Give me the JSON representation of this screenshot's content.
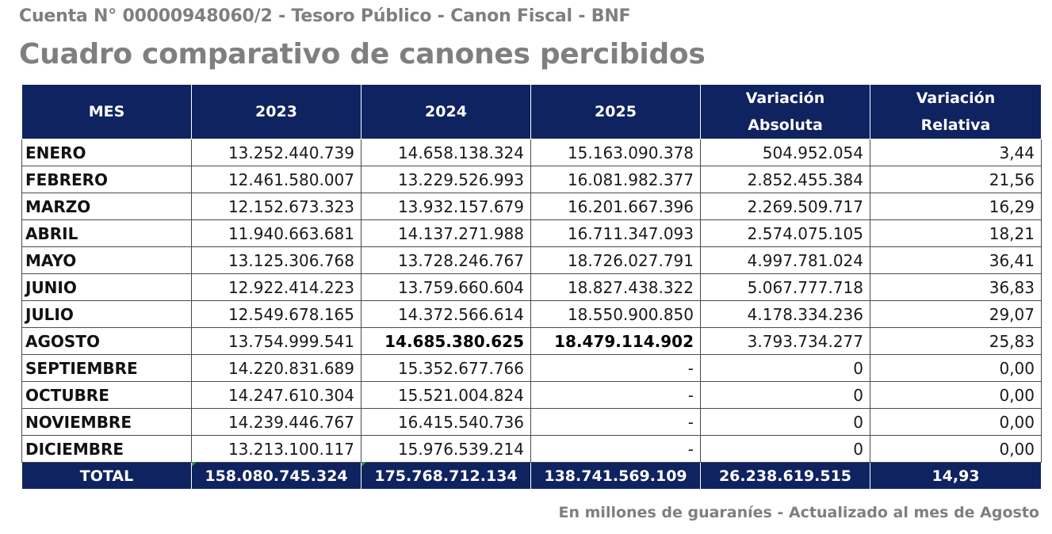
{
  "header": {
    "subtitle": "Cuenta N° 00000948060/2 - Tesoro Público - Canon Fiscal - BNF",
    "title": "Cuadro comparativo de canones percibidos"
  },
  "table": {
    "columns": {
      "mes": "MES",
      "y2023": "2023",
      "y2024": "2024",
      "y2025": "2025",
      "var_abs_1": "Variación",
      "var_abs_2": "Absoluta",
      "var_rel_1": "Variación",
      "var_rel_2": "Relativa"
    },
    "rows": [
      {
        "mes": "ENERO",
        "y2023": "13.252.440.739",
        "y2024": "14.658.138.324",
        "y2025": "15.163.090.378",
        "var_abs": "504.952.054",
        "var_rel": "3,44"
      },
      {
        "mes": "FEBRERO",
        "y2023": "12.461.580.007",
        "y2024": "13.229.526.993",
        "y2025": "16.081.982.377",
        "var_abs": "2.852.455.384",
        "var_rel": "21,56"
      },
      {
        "mes": "MARZO",
        "y2023": "12.152.673.323",
        "y2024": "13.932.157.679",
        "y2025": "16.201.667.396",
        "var_abs": "2.269.509.717",
        "var_rel": "16,29"
      },
      {
        "mes": "ABRIL",
        "y2023": "11.940.663.681",
        "y2024": "14.137.271.988",
        "y2025": "16.711.347.093",
        "var_abs": "2.574.075.105",
        "var_rel": "18,21"
      },
      {
        "mes": "MAYO",
        "y2023": "13.125.306.768",
        "y2024": "13.728.246.767",
        "y2025": "18.726.027.791",
        "var_abs": "4.997.781.024",
        "var_rel": "36,41"
      },
      {
        "mes": "JUNIO",
        "y2023": "12.922.414.223",
        "y2024": "13.759.660.604",
        "y2025": "18.827.438.322",
        "var_abs": "5.067.777.718",
        "var_rel": "36,83"
      },
      {
        "mes": "JULIO",
        "y2023": "12.549.678.165",
        "y2024": "14.372.566.614",
        "y2025": "18.550.900.850",
        "var_abs": "4.178.334.236",
        "var_rel": "29,07"
      },
      {
        "mes": "AGOSTO",
        "y2023": "13.754.999.541",
        "y2024": "14.685.380.625",
        "y2025": "18.479.114.902",
        "var_abs": "3.793.734.277",
        "var_rel": "25,83"
      },
      {
        "mes": "SEPTIEMBRE",
        "y2023": "14.220.831.689",
        "y2024": "15.352.677.766",
        "y2025": "-",
        "var_abs": "0",
        "var_rel": "0,00"
      },
      {
        "mes": "OCTUBRE",
        "y2023": "14.247.610.304",
        "y2024": "15.521.004.824",
        "y2025": "-",
        "var_abs": "0",
        "var_rel": "0,00"
      },
      {
        "mes": "NOVIEMBRE",
        "y2023": "14.239.446.767",
        "y2024": "16.415.540.736",
        "y2025": "-",
        "var_abs": "0",
        "var_rel": "0,00"
      },
      {
        "mes": "DICIEMBRE",
        "y2023": "13.213.100.117",
        "y2024": "15.976.539.214",
        "y2025": "-",
        "var_abs": "0",
        "var_rel": "0,00"
      }
    ],
    "total": {
      "label": "TOTAL",
      "y2023": "158.080.745.324",
      "y2024": "175.768.712.134",
      "y2025": "138.741.569.109",
      "var_abs": "26.238.619.515",
      "var_rel": "14,93"
    }
  },
  "footnote": "En millones de guaraníes - Actualizado al mes de Agosto",
  "colors": {
    "header_bg": "#0f2360",
    "header_text": "#ffffff",
    "title_gray": "#7f7f7f",
    "corner_marker": "#2e9e3e"
  }
}
